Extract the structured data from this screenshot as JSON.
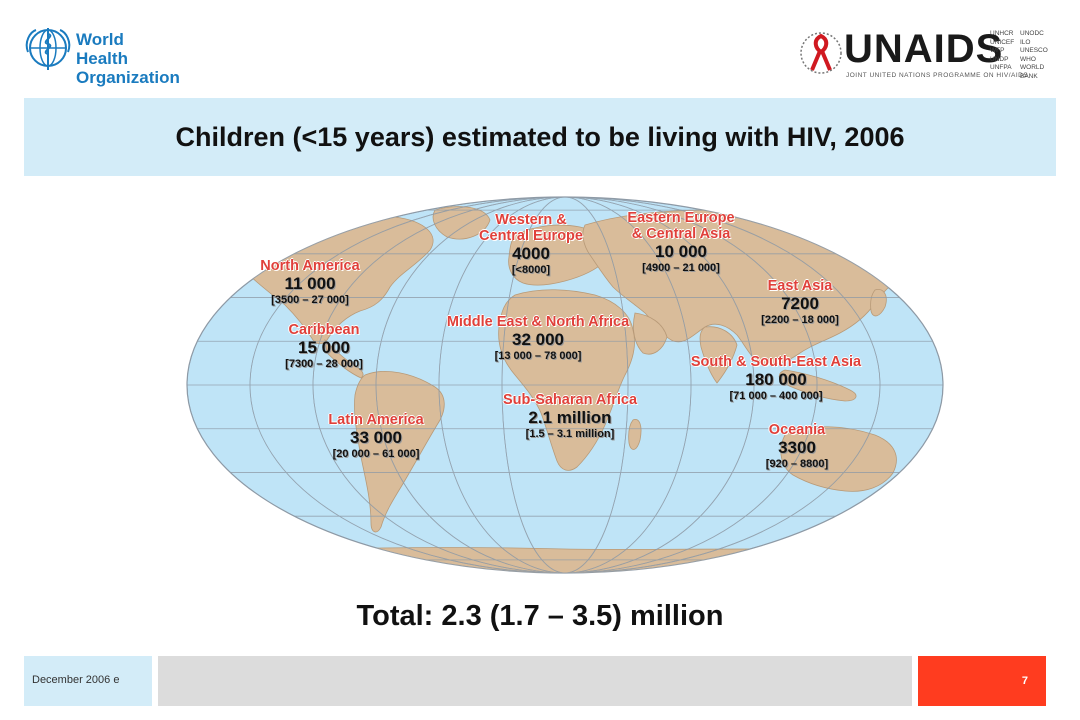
{
  "header": {
    "who_logo_text": [
      "World Health",
      "Organization"
    ],
    "unaids_word": "UNAIDS",
    "unaids_subtitle": "JOINT UNITED NATIONS PROGRAMME ON HIV/AIDS",
    "unaids_cosponsors_col1": [
      "UNHCR",
      "UNICEF",
      "WFP",
      "UNDP",
      "UNFPA"
    ],
    "unaids_cosponsors_col2": [
      "UNODC",
      "ILO",
      "UNESCO",
      "WHO",
      "WORLD BANK"
    ]
  },
  "title": "Children (<15 years) estimated to be living with HIV, 2006",
  "map": {
    "colors": {
      "ocean": "#bfe4f7",
      "land": "#d9bc9a",
      "grid": "#8e9aa6",
      "label": "#e0403a"
    },
    "regions": [
      {
        "id": "north-america",
        "name_lines": [
          "North America"
        ],
        "value": "11 000",
        "range": "[3500 – 27 000]"
      },
      {
        "id": "caribbean",
        "name_lines": [
          "Caribbean"
        ],
        "value": "15 000",
        "range": "[7300 – 28 000]"
      },
      {
        "id": "latin-america",
        "name_lines": [
          "Latin America"
        ],
        "value": "33 000",
        "range": "[20 000 – 61 000]"
      },
      {
        "id": "western-central-europe",
        "name_lines": [
          "Western &",
          "Central Europe"
        ],
        "value": "4000",
        "range": "[<8000]"
      },
      {
        "id": "eastern-europe-central-asia",
        "name_lines": [
          "Eastern Europe",
          "& Central Asia"
        ],
        "value": "10 000",
        "range": "[4900 – 21 000]"
      },
      {
        "id": "middle-east-north-africa",
        "name_lines": [
          "Middle East & North Africa"
        ],
        "value": "32 000",
        "range": "[13 000 – 78 000]"
      },
      {
        "id": "sub-saharan-africa",
        "name_lines": [
          "Sub-Saharan Africa"
        ],
        "value": "2.1 million",
        "range": "[1.5 – 3.1 million]"
      },
      {
        "id": "east-asia",
        "name_lines": [
          "East Asia"
        ],
        "value": "7200",
        "range": "[2200 – 18 000]"
      },
      {
        "id": "south-southeast-asia",
        "name_lines": [
          "South & South-East Asia"
        ],
        "value": "180 000",
        "range": "[71 000 – 400 000]"
      },
      {
        "id": "oceania",
        "name_lines": [
          "Oceania"
        ],
        "value": "3300",
        "range": "[920 – 8800]"
      }
    ]
  },
  "total": "Total: 2.3 (1.7 – 3.5) million",
  "footer": {
    "date": "December 2006  e",
    "page": "7"
  }
}
